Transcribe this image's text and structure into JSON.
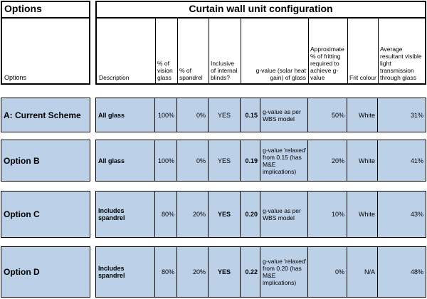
{
  "options_header": {
    "title": "Options",
    "label": "Options"
  },
  "config_header": {
    "title": "Curtain wall unit configuration",
    "columns": [
      "Description",
      "% of vision glass",
      "% of spandrel",
      "Inclusive of internal blinds?",
      "g-value (solar heat gain) of glass",
      "Approximate % of fritting required to achieve g-value",
      "Frit colour",
      "Average resultant visible light transmission through glass"
    ]
  },
  "rows": [
    {
      "option": "A: Current Scheme",
      "description": "All glass",
      "vision": "100%",
      "spandrel": "0%",
      "blinds": "YES",
      "gvalue": "0.15",
      "gnote": "g-value as per WBS model",
      "fritting": "50%",
      "frit_colour": "White",
      "vlt": "31%"
    },
    {
      "option": "Option B",
      "description": "All glass",
      "vision": "100%",
      "spandrel": "0%",
      "blinds": "YES",
      "gvalue": "0.19",
      "gnote": "g-value 'relaxed' from 0.15 (has M&E implications)",
      "fritting": "20%",
      "frit_colour": "White",
      "vlt": "41%"
    },
    {
      "option": "Option C",
      "description": "Includes spandrel",
      "vision": "80%",
      "spandrel": "20%",
      "blinds": "YES",
      "gvalue": "0.20",
      "gnote": "g-value as per WBS model",
      "fritting": "10%",
      "frit_colour": "White",
      "vlt": "43%"
    },
    {
      "option": "Option D",
      "description": "Includes spandrel",
      "vision": "80%",
      "spandrel": "20%",
      "blinds": "YES",
      "gvalue": "0.22",
      "gnote": "g-value 'relaxed' from 0.20 (has M&E implications)",
      "fritting": "0%",
      "frit_colour": "N/A",
      "vlt": "48%"
    }
  ]
}
